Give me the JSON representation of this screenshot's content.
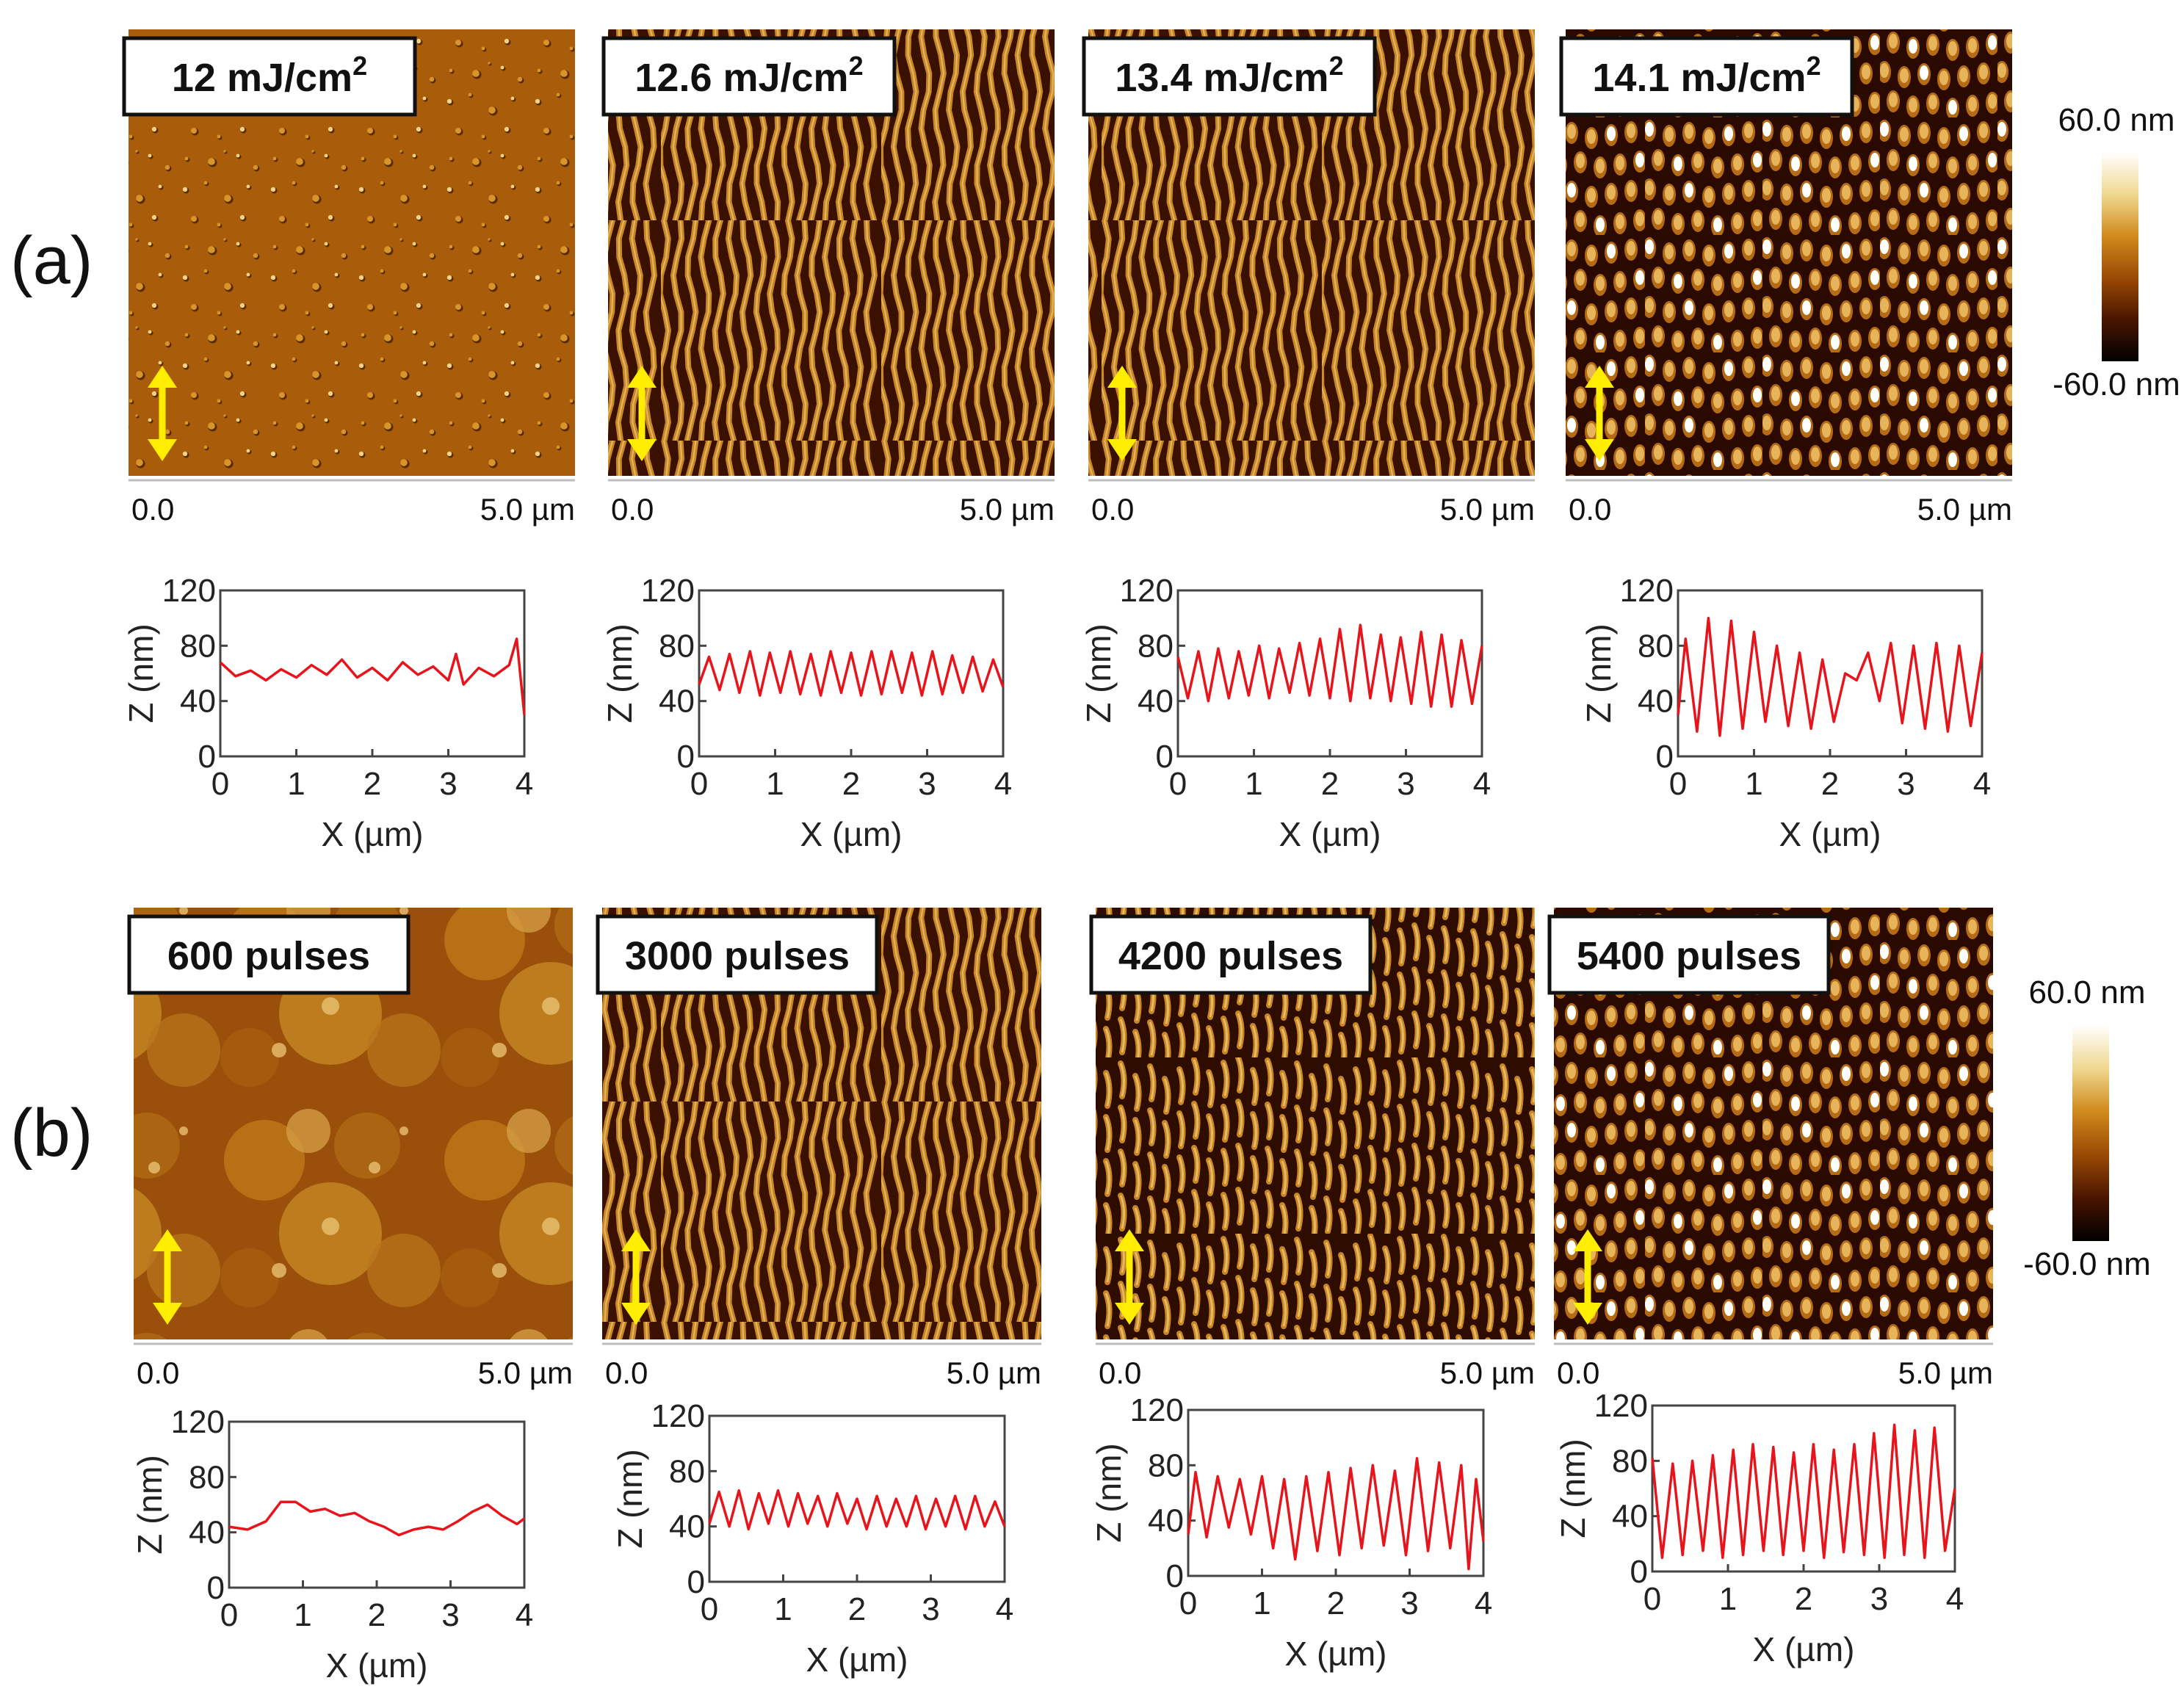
{
  "figure": {
    "rows": [
      {
        "label": "(a)",
        "colorbar": {
          "max": "60.0 nm",
          "min": "-60.0 nm"
        },
        "panels": [
          {
            "title": "12 mJ/cm",
            "sup": "2",
            "axis_start": "0.0",
            "axis_end": "5.0 µm",
            "texture": "rough"
          },
          {
            "title": "12.6 mJ/cm",
            "sup": "2",
            "axis_start": "0.0",
            "axis_end": "5.0 µm",
            "texture": "stripes"
          },
          {
            "title": "13.4 mJ/cm",
            "sup": "2",
            "axis_start": "0.0",
            "axis_end": "5.0 µm",
            "texture": "stripes"
          },
          {
            "title": "14.1 mJ/cm",
            "sup": "2",
            "axis_start": "0.0",
            "axis_end": "5.0 µm",
            "texture": "dots"
          }
        ]
      },
      {
        "label": "(b)",
        "colorbar": {
          "max": "60.0 nm",
          "min": "-60.0 nm"
        },
        "panels": [
          {
            "title": "600 pulses",
            "sup": "",
            "axis_start": "0.0",
            "axis_end": "5.0 µm",
            "texture": "blotchy"
          },
          {
            "title": "3000 pulses",
            "sup": "",
            "axis_start": "0.0",
            "axis_end": "5.0 µm",
            "texture": "stripes"
          },
          {
            "title": "4200 pulses",
            "sup": "",
            "axis_start": "0.0",
            "axis_end": "5.0 µm",
            "texture": "broken"
          },
          {
            "title": "5400 pulses",
            "sup": "",
            "axis_start": "0.0",
            "axis_end": "5.0 µm",
            "texture": "dots"
          }
        ]
      }
    ],
    "arrow_color": "#ffee00",
    "afm_colors": [
      "#000000",
      "#4a1500",
      "#9a4a05",
      "#d08a1c",
      "#f0d890",
      "#ffffff"
    ]
  },
  "chart_data": [
    {
      "type": "line",
      "row": "a",
      "panel": 1,
      "xlabel": "X (µm)",
      "ylabel": "Z (nm)",
      "xlim": [
        0,
        4
      ],
      "ylim": [
        0,
        120
      ],
      "xticks": [
        "0",
        "1",
        "2",
        "3",
        "4"
      ],
      "yticks": [
        "0",
        "40",
        "80",
        "120"
      ],
      "line_color": "#e8141c",
      "x": [
        0,
        0.2,
        0.4,
        0.6,
        0.8,
        1.0,
        1.2,
        1.4,
        1.6,
        1.8,
        2.0,
        2.2,
        2.4,
        2.6,
        2.8,
        3.0,
        3.1,
        3.2,
        3.4,
        3.6,
        3.8,
        3.9,
        4.0
      ],
      "y": [
        68,
        58,
        62,
        55,
        63,
        57,
        66,
        59,
        70,
        57,
        64,
        55,
        68,
        59,
        65,
        55,
        74,
        52,
        64,
        58,
        66,
        85,
        30
      ]
    },
    {
      "type": "line",
      "row": "a",
      "panel": 2,
      "xlabel": "X (µm)",
      "ylabel": "Z (nm)",
      "xlim": [
        0,
        4
      ],
      "ylim": [
        0,
        120
      ],
      "xticks": [
        "0",
        "1",
        "2",
        "3",
        "4"
      ],
      "yticks": [
        "0",
        "40",
        "80",
        "120"
      ],
      "line_color": "#e8141c",
      "x": [
        0,
        0.13,
        0.27,
        0.4,
        0.53,
        0.67,
        0.8,
        0.93,
        1.07,
        1.2,
        1.33,
        1.47,
        1.6,
        1.73,
        1.87,
        2.0,
        2.13,
        2.27,
        2.4,
        2.53,
        2.67,
        2.8,
        2.93,
        3.07,
        3.2,
        3.33,
        3.47,
        3.6,
        3.73,
        3.87,
        4.0
      ],
      "y": [
        52,
        72,
        48,
        74,
        46,
        76,
        44,
        75,
        46,
        76,
        45,
        74,
        44,
        76,
        46,
        75,
        44,
        76,
        45,
        76,
        46,
        75,
        44,
        76,
        45,
        73,
        46,
        72,
        47,
        70,
        50
      ]
    },
    {
      "type": "line",
      "row": "a",
      "panel": 3,
      "xlabel": "X (µm)",
      "ylabel": "Z (nm)",
      "xlim": [
        0,
        4
      ],
      "ylim": [
        0,
        120
      ],
      "xticks": [
        "0",
        "1",
        "2",
        "3",
        "4"
      ],
      "yticks": [
        "0",
        "40",
        "80",
        "120"
      ],
      "line_color": "#e8141c",
      "x": [
        0,
        0.13,
        0.27,
        0.4,
        0.53,
        0.67,
        0.8,
        0.93,
        1.07,
        1.2,
        1.33,
        1.47,
        1.6,
        1.73,
        1.87,
        2.0,
        2.13,
        2.27,
        2.4,
        2.53,
        2.67,
        2.8,
        2.93,
        3.07,
        3.2,
        3.33,
        3.47,
        3.6,
        3.73,
        3.87,
        4.0
      ],
      "y": [
        72,
        42,
        76,
        40,
        78,
        42,
        76,
        44,
        80,
        42,
        78,
        46,
        82,
        44,
        85,
        42,
        92,
        40,
        95,
        42,
        88,
        40,
        86,
        38,
        90,
        36,
        88,
        36,
        84,
        38,
        80
      ]
    },
    {
      "type": "line",
      "row": "a",
      "panel": 4,
      "xlabel": "X (µm)",
      "ylabel": "Z (nm)",
      "xlim": [
        0,
        4
      ],
      "ylim": [
        0,
        120
      ],
      "xticks": [
        "0",
        "1",
        "2",
        "3",
        "4"
      ],
      "yticks": [
        "0",
        "40",
        "80",
        "120"
      ],
      "line_color": "#e8141c",
      "x": [
        0,
        0.1,
        0.25,
        0.4,
        0.55,
        0.7,
        0.85,
        1.0,
        1.15,
        1.3,
        1.45,
        1.6,
        1.75,
        1.9,
        2.05,
        2.2,
        2.35,
        2.5,
        2.65,
        2.8,
        2.95,
        3.1,
        3.25,
        3.4,
        3.55,
        3.7,
        3.85,
        4.0
      ],
      "y": [
        30,
        85,
        18,
        100,
        15,
        98,
        20,
        90,
        25,
        80,
        22,
        75,
        20,
        70,
        25,
        60,
        55,
        75,
        40,
        82,
        24,
        80,
        20,
        82,
        18,
        80,
        22,
        75
      ]
    },
    {
      "type": "line",
      "row": "b",
      "panel": 1,
      "xlabel": "X (µm)",
      "ylabel": "Z (nm)",
      "xlim": [
        0,
        4
      ],
      "ylim": [
        0,
        120
      ],
      "xticks": [
        "0",
        "1",
        "2",
        "3",
        "4"
      ],
      "yticks": [
        "0",
        "40",
        "80",
        "120"
      ],
      "line_color": "#e8141c",
      "x": [
        0,
        0.25,
        0.5,
        0.7,
        0.9,
        1.1,
        1.3,
        1.5,
        1.7,
        1.9,
        2.1,
        2.3,
        2.5,
        2.7,
        2.9,
        3.1,
        3.3,
        3.5,
        3.7,
        3.9,
        4.0
      ],
      "y": [
        44,
        42,
        48,
        62,
        62,
        55,
        57,
        52,
        54,
        48,
        44,
        38,
        42,
        44,
        42,
        48,
        55,
        60,
        52,
        46,
        50
      ]
    },
    {
      "type": "line",
      "row": "b",
      "panel": 2,
      "xlabel": "X (µm)",
      "ylabel": "Z (nm)",
      "xlim": [
        0,
        4
      ],
      "ylim": [
        0,
        120
      ],
      "xticks": [
        "0",
        "1",
        "2",
        "3",
        "4"
      ],
      "yticks": [
        "0",
        "40",
        "80",
        "120"
      ],
      "line_color": "#e8141c",
      "x": [
        0,
        0.13,
        0.27,
        0.4,
        0.53,
        0.67,
        0.8,
        0.93,
        1.07,
        1.2,
        1.33,
        1.47,
        1.6,
        1.73,
        1.87,
        2.0,
        2.13,
        2.27,
        2.4,
        2.53,
        2.67,
        2.8,
        2.93,
        3.07,
        3.2,
        3.33,
        3.47,
        3.6,
        3.73,
        3.87,
        4.0
      ],
      "y": [
        42,
        65,
        40,
        66,
        38,
        64,
        42,
        66,
        40,
        64,
        42,
        62,
        40,
        64,
        42,
        60,
        38,
        62,
        40,
        60,
        40,
        62,
        38,
        60,
        40,
        62,
        38,
        62,
        40,
        58,
        40
      ]
    },
    {
      "type": "line",
      "row": "b",
      "panel": 3,
      "xlabel": "X (µm)",
      "ylabel": "Z (nm)",
      "xlim": [
        0,
        4
      ],
      "ylim": [
        0,
        120
      ],
      "xticks": [
        "0",
        "1",
        "2",
        "3",
        "4"
      ],
      "yticks": [
        "0",
        "40",
        "80",
        "120"
      ],
      "line_color": "#e8141c",
      "x": [
        0,
        0.1,
        0.25,
        0.4,
        0.55,
        0.7,
        0.85,
        1.0,
        1.15,
        1.3,
        1.45,
        1.6,
        1.75,
        1.9,
        2.05,
        2.2,
        2.35,
        2.5,
        2.65,
        2.8,
        2.95,
        3.1,
        3.25,
        3.4,
        3.55,
        3.7,
        3.8,
        3.9,
        4.0
      ],
      "y": [
        30,
        75,
        28,
        72,
        35,
        70,
        30,
        72,
        20,
        70,
        12,
        72,
        18,
        75,
        15,
        78,
        20,
        80,
        22,
        76,
        15,
        85,
        18,
        82,
        20,
        80,
        5,
        70,
        25
      ]
    },
    {
      "type": "line",
      "row": "b",
      "panel": 4,
      "xlabel": "X (µm)",
      "ylabel": "Z (nm)",
      "xlim": [
        0,
        4
      ],
      "ylim": [
        0,
        120
      ],
      "xticks": [
        "0",
        "1",
        "2",
        "3",
        "4"
      ],
      "yticks": [
        "0",
        "40",
        "80",
        "120"
      ],
      "line_color": "#e8141c",
      "x": [
        0,
        0.13,
        0.27,
        0.4,
        0.53,
        0.67,
        0.8,
        0.93,
        1.07,
        1.2,
        1.33,
        1.47,
        1.6,
        1.73,
        1.87,
        2.0,
        2.13,
        2.27,
        2.4,
        2.53,
        2.67,
        2.8,
        2.93,
        3.07,
        3.2,
        3.33,
        3.47,
        3.6,
        3.73,
        3.87,
        4.0
      ],
      "y": [
        82,
        10,
        78,
        12,
        80,
        15,
        84,
        10,
        88,
        12,
        92,
        15,
        90,
        12,
        86,
        15,
        92,
        10,
        88,
        14,
        92,
        12,
        100,
        10,
        106,
        12,
        102,
        10,
        104,
        15,
        60
      ]
    }
  ]
}
